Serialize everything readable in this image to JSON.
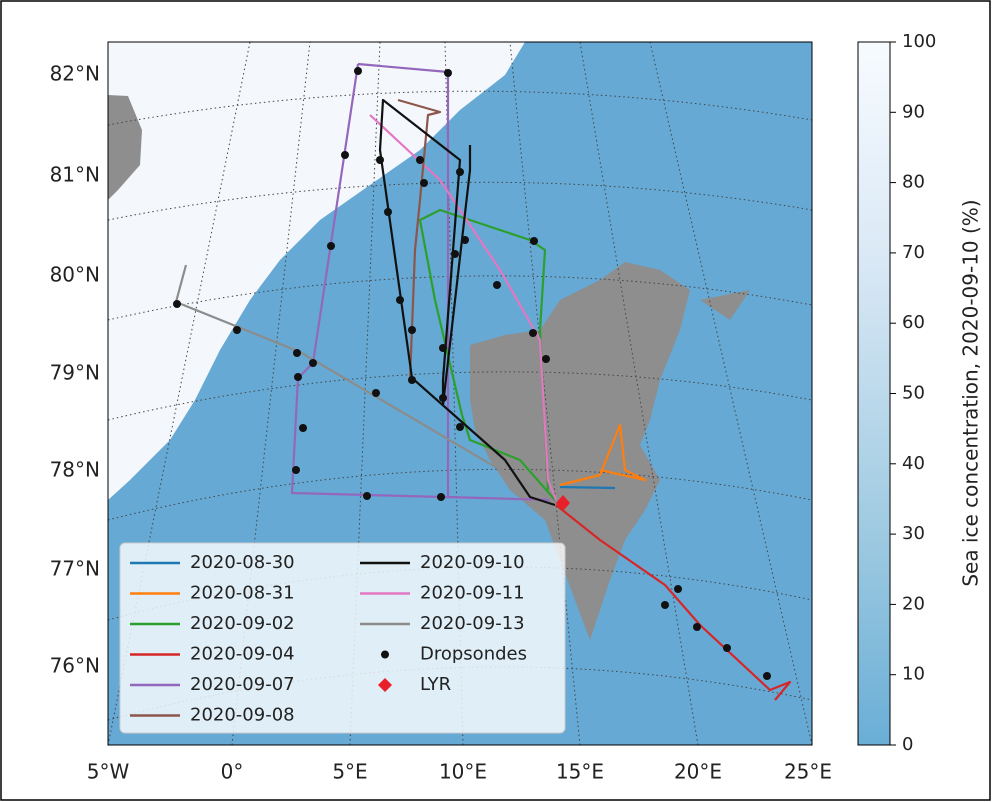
{
  "map": {
    "lat_labels": [
      "82°N",
      "81°N",
      "80°N",
      "79°N",
      "78°N",
      "77°N",
      "76°N"
    ],
    "lon_labels": [
      "5°W",
      "0°",
      "5°E",
      "10°E",
      "15°E",
      "20°E",
      "25°E"
    ],
    "legend": [
      {
        "label": "2020-08-30",
        "color": "#1f77b4"
      },
      {
        "label": "2020-08-31",
        "color": "#ff7f0e"
      },
      {
        "label": "2020-09-02",
        "color": "#2ca02c"
      },
      {
        "label": "2020-09-04",
        "color": "#d62728"
      },
      {
        "label": "2020-09-07",
        "color": "#9467bd"
      },
      {
        "label": "2020-09-08",
        "color": "#8c564b"
      },
      {
        "label": "2020-09-10",
        "color": "#111111"
      },
      {
        "label": "2020-09-11",
        "color": "#e377c2"
      },
      {
        "label": "2020-09-13",
        "color": "#8c8c8c"
      },
      {
        "label": "Dropsondes",
        "color": "#111111"
      },
      {
        "label": "LYR",
        "color": "#e8202a"
      }
    ],
    "colorbar": {
      "label": "Sea ice concentration, 2020-09-10 (%)",
      "ticks": [
        0,
        10,
        20,
        30,
        40,
        50,
        60,
        70,
        80,
        90,
        100
      ]
    }
  }
}
